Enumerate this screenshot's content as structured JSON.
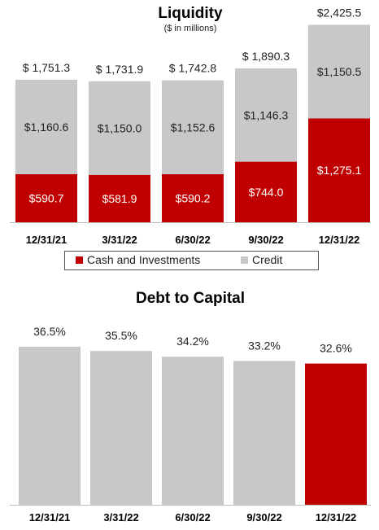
{
  "colors": {
    "cash": "#c00000",
    "credit": "#c8c8c8",
    "highlight": "#c00000"
  },
  "chart_data": [
    {
      "type": "bar",
      "stacked": true,
      "title": "Liquidity",
      "subtitle": "($ in millions)",
      "categories": [
        "12/31/21",
        "3/31/22",
        "6/30/22",
        "9/30/22",
        "12/31/22"
      ],
      "series": [
        {
          "name": "Cash and Investments",
          "values": [
            590.7,
            581.9,
            590.2,
            744.0,
            1275.1
          ],
          "labels": [
            "$590.7",
            "$581.9",
            "$590.2",
            "$744.0",
            "$1,275.1"
          ]
        },
        {
          "name": "Credit",
          "values": [
            1160.6,
            1150.0,
            1152.6,
            1146.3,
            1150.5
          ],
          "labels": [
            "$1,160.6",
            "$1,150.0",
            "$1,152.6",
            "$1,146.3",
            "$1,150.5"
          ]
        }
      ],
      "totals": [
        1751.3,
        1731.9,
        1742.8,
        1890.3,
        2425.5
      ],
      "total_labels": [
        "$ 1,751.3",
        "$ 1,731.9",
        "$ 1,742.8",
        "$ 1,890.3",
        "$2,425.5"
      ],
      "legend_position": "bottom"
    },
    {
      "type": "bar",
      "title": "Debt to Capital",
      "categories": [
        "12/31/21",
        "3/31/22",
        "6/30/22",
        "9/30/22",
        "12/31/22"
      ],
      "values": [
        36.5,
        35.5,
        34.2,
        33.2,
        32.6
      ],
      "value_labels": [
        "36.5%",
        "35.5%",
        "34.2%",
        "33.2%",
        "32.6%"
      ],
      "highlight_index": 4
    }
  ]
}
